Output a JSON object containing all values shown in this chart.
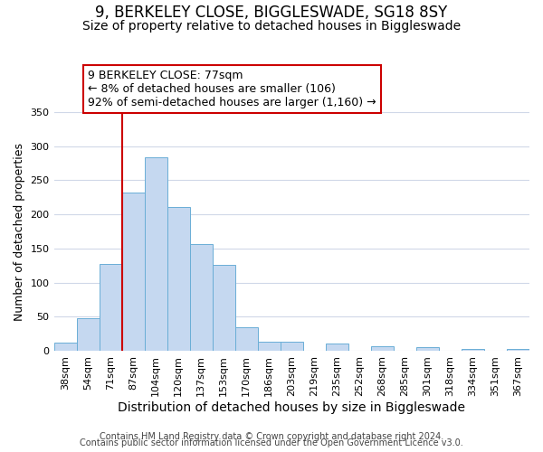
{
  "title": "9, BERKELEY CLOSE, BIGGLESWADE, SG18 8SY",
  "subtitle": "Size of property relative to detached houses in Biggleswade",
  "xlabel": "Distribution of detached houses by size in Biggleswade",
  "ylabel": "Number of detached properties",
  "bin_labels": [
    "38sqm",
    "54sqm",
    "71sqm",
    "87sqm",
    "104sqm",
    "120sqm",
    "137sqm",
    "153sqm",
    "170sqm",
    "186sqm",
    "203sqm",
    "219sqm",
    "235sqm",
    "252sqm",
    "268sqm",
    "285sqm",
    "301sqm",
    "318sqm",
    "334sqm",
    "351sqm",
    "367sqm"
  ],
  "bar_heights": [
    12,
    48,
    127,
    232,
    284,
    211,
    157,
    126,
    35,
    13,
    13,
    0,
    11,
    0,
    7,
    0,
    5,
    0,
    3,
    0,
    3
  ],
  "bar_color": "#c5d8f0",
  "bar_edge_color": "#6aaed6",
  "ylim": [
    0,
    350
  ],
  "yticks": [
    0,
    50,
    100,
    150,
    200,
    250,
    300,
    350
  ],
  "vline_x": 2.5,
  "vline_color": "#cc0000",
  "annotation_text": "9 BERKELEY CLOSE: 77sqm\n← 8% of detached houses are smaller (106)\n92% of semi-detached houses are larger (1,160) →",
  "annotation_box_color": "#ffffff",
  "annotation_box_edge": "#cc0000",
  "footnote1": "Contains HM Land Registry data © Crown copyright and database right 2024.",
  "footnote2": "Contains public sector information licensed under the Open Government Licence v3.0.",
  "background_color": "#ffffff",
  "grid_color": "#d0d8e8",
  "title_fontsize": 12,
  "subtitle_fontsize": 10,
  "xlabel_fontsize": 10,
  "ylabel_fontsize": 9,
  "tick_fontsize": 8,
  "annotation_fontsize": 9,
  "footnote_fontsize": 7
}
